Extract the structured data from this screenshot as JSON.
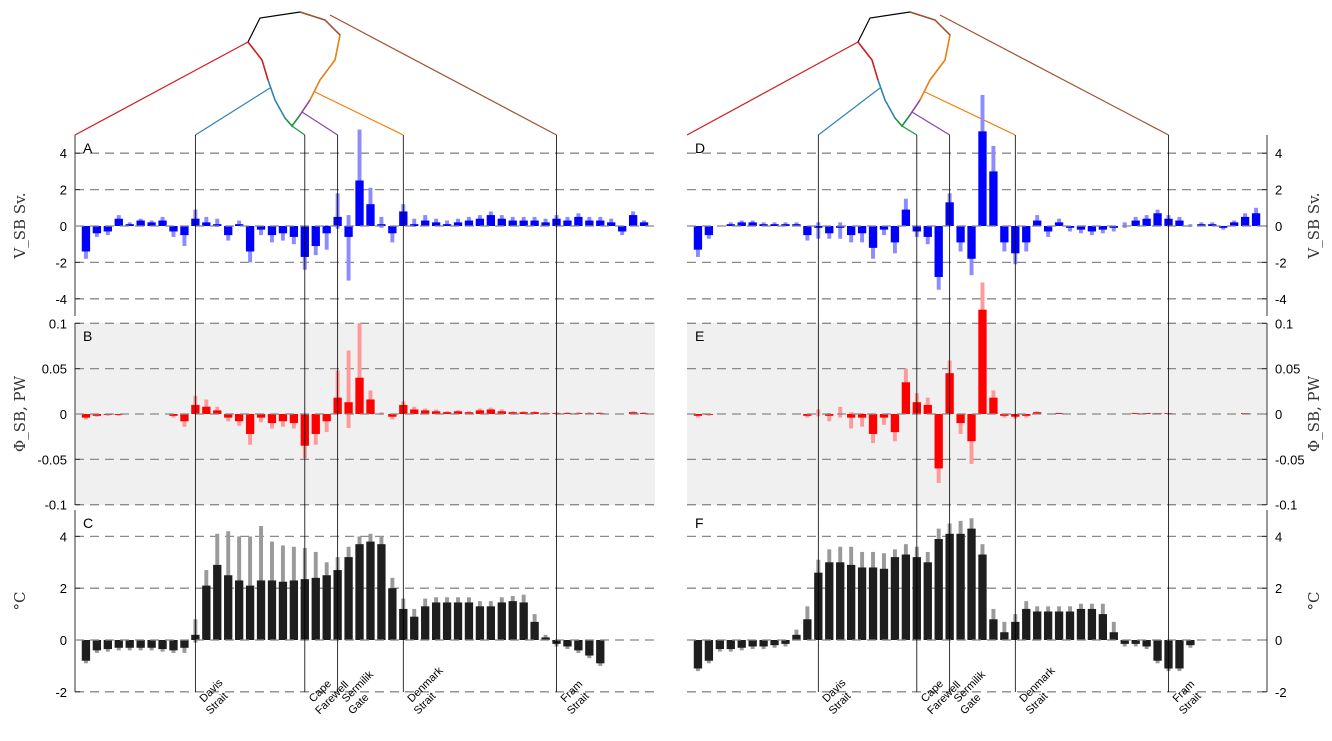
{
  "chart_data": {
    "type": "bar",
    "colors": {
      "transport": "#0000ff",
      "transport_err": "#8c8cff",
      "heat": "#ff0000",
      "heat_err": "#ff9a9a",
      "temp": "#1e1e1e",
      "temp_err": "#9a9a9a",
      "heat_bg": "#f0f0f0",
      "section_colors": [
        "#d7191c",
        "#2b83ba",
        "#1a9641",
        "#8e44ad",
        "#f07f09",
        "#a0522d"
      ]
    },
    "sections": [
      "Davis\nStrait",
      "Cape\nFarewell",
      "Sermilik\nGate",
      "Denmark\nStrait",
      "Fram\nStrait"
    ],
    "rows": {
      "transport": {
        "ylim": [
          -5,
          5
        ],
        "yticks": [
          "4",
          "2",
          "0",
          "-2",
          "-4"
        ],
        "ylabel": "V_SB Sv."
      },
      "heat": {
        "ylim": [
          -0.1,
          0.1
        ],
        "yticks": [
          "0.1",
          "0.05",
          "0",
          "-0.05",
          "-0.1"
        ],
        "ylabel": "Φ_SB, PW"
      },
      "temp": {
        "ylim": [
          -2,
          5
        ],
        "yticks": [
          "4",
          "2",
          "0",
          "-2"
        ],
        "ylabel": "°C"
      }
    },
    "panels": [
      {
        "labels": [
          "A",
          "B",
          "C"
        ],
        "n": 52,
        "section_index": [
          10,
          20,
          23,
          29,
          43
        ],
        "transport": [
          -1.4,
          -0.4,
          -0.3,
          0.4,
          0.1,
          0.3,
          0.2,
          0.3,
          -0.3,
          -0.5,
          0.4,
          0.2,
          0.1,
          -0.5,
          0.1,
          -1.4,
          -0.2,
          -0.5,
          -0.4,
          -0.6,
          -1.7,
          -1.1,
          -0.4,
          0.5,
          -0.6,
          2.5,
          1.2,
          0.1,
          -0.4,
          0.8,
          0.1,
          0.3,
          0.2,
          0.1,
          0.2,
          0.3,
          0.4,
          0.6,
          0.4,
          0.3,
          0.3,
          0.3,
          0.2,
          0.4,
          0.3,
          0.5,
          0.3,
          0.3,
          0.2,
          -0.3,
          0.6,
          0.2
        ],
        "transport_err": [
          0.4,
          0.2,
          0.2,
          0.2,
          0.1,
          0.1,
          0.1,
          0.2,
          0.3,
          0.6,
          0.5,
          0.3,
          0.3,
          0.3,
          0.2,
          0.6,
          0.3,
          0.4,
          0.4,
          0.4,
          0.7,
          0.5,
          0.9,
          1.3,
          2.4,
          2.8,
          0.9,
          0.4,
          0.5,
          0.4,
          0.3,
          0.3,
          0.2,
          0.2,
          0.2,
          0.2,
          0.2,
          0.2,
          0.2,
          0.2,
          0.2,
          0.2,
          0.2,
          0.2,
          0.2,
          0.2,
          0.2,
          0.2,
          0.2,
          0.2,
          0.2,
          0.1
        ],
        "heat": [
          -0.004,
          -0.002,
          -0.001,
          -0.001,
          0.0,
          0.0,
          0.0,
          0.0,
          -0.002,
          -0.008,
          0.01,
          0.008,
          0.004,
          -0.004,
          -0.008,
          -0.022,
          -0.004,
          -0.01,
          -0.008,
          -0.01,
          -0.035,
          -0.022,
          -0.008,
          0.018,
          0.013,
          0.04,
          0.016,
          0.0,
          -0.003,
          0.01,
          0.005,
          0.004,
          0.003,
          0.002,
          0.003,
          0.002,
          0.004,
          0.005,
          0.003,
          0.002,
          0.002,
          0.002,
          0.001,
          0.001,
          0.001,
          0.001,
          0.001,
          0.001,
          0.0,
          0.0,
          0.002,
          0.001
        ],
        "heat_err": [
          0.002,
          0.001,
          0.001,
          0.001,
          0.0,
          0.0,
          0.0,
          0.0,
          0.002,
          0.006,
          0.01,
          0.008,
          0.004,
          0.004,
          0.005,
          0.012,
          0.005,
          0.006,
          0.006,
          0.006,
          0.014,
          0.012,
          0.012,
          0.03,
          0.057,
          0.06,
          0.01,
          0.002,
          0.003,
          0.004,
          0.003,
          0.002,
          0.002,
          0.001,
          0.001,
          0.001,
          0.002,
          0.002,
          0.002,
          0.001,
          0.001,
          0.001,
          0.001,
          0.001,
          0.001,
          0.001,
          0.001,
          0.001,
          0.0,
          0.0,
          0.001,
          0.001
        ],
        "temp": [
          -0.8,
          -0.4,
          -0.35,
          -0.3,
          -0.3,
          -0.3,
          -0.3,
          -0.35,
          -0.4,
          -0.3,
          0.2,
          2.1,
          2.9,
          2.5,
          2.3,
          2.1,
          2.3,
          2.3,
          2.25,
          2.3,
          2.35,
          2.4,
          2.5,
          2.7,
          3.2,
          3.7,
          3.8,
          3.7,
          2.0,
          1.2,
          0.9,
          1.3,
          1.45,
          1.45,
          1.45,
          1.45,
          1.3,
          1.3,
          1.45,
          1.5,
          1.45,
          0.7,
          0.1,
          -0.15,
          -0.25,
          -0.4,
          -0.6,
          -0.9,
          0.0,
          0.0,
          0.0,
          0.0
        ],
        "temp_err": [
          0.1,
          0.1,
          0.1,
          0.1,
          0.1,
          0.1,
          0.1,
          0.1,
          0.1,
          0.2,
          0.6,
          0.6,
          1.2,
          1.7,
          1.7,
          1.9,
          2.1,
          1.5,
          1.4,
          1.3,
          1.2,
          1.0,
          0.5,
          0.5,
          0.4,
          0.3,
          0.3,
          0.3,
          0.4,
          0.4,
          0.3,
          0.3,
          0.2,
          0.2,
          0.2,
          0.2,
          0.2,
          0.2,
          0.2,
          0.2,
          0.3,
          0.3,
          0.1,
          0.1,
          0.1,
          0.1,
          0.1,
          0.1,
          0.0,
          0.0,
          0.0,
          0.0
        ]
      },
      {
        "labels": [
          "D",
          "E",
          "F"
        ],
        "n": 52,
        "section_index": [
          11,
          20,
          23,
          29,
          43
        ],
        "transport": [
          -1.3,
          -0.5,
          0.0,
          0.1,
          0.2,
          0.2,
          0.1,
          0.1,
          0.1,
          0.1,
          -0.5,
          -0.1,
          -0.4,
          -0.1,
          -0.5,
          -0.4,
          -1.2,
          -0.2,
          -0.9,
          0.9,
          -0.3,
          -0.6,
          -2.8,
          1.3,
          -0.9,
          -1.8,
          5.2,
          3.0,
          -0.9,
          -1.5,
          -0.9,
          0.3,
          -0.3,
          0.2,
          -0.1,
          -0.2,
          -0.3,
          -0.2,
          -0.1,
          0.0,
          0.3,
          0.4,
          0.7,
          0.4,
          0.3,
          0.0,
          0.1,
          0.1,
          -0.1,
          0.2,
          0.5,
          0.7
        ],
        "transport_err": [
          0.4,
          0.2,
          0.0,
          0.1,
          0.1,
          0.1,
          0.1,
          0.1,
          0.1,
          0.1,
          0.3,
          0.6,
          0.3,
          0.6,
          0.4,
          0.5,
          0.6,
          0.3,
          0.6,
          0.6,
          0.3,
          0.4,
          0.7,
          0.5,
          0.5,
          0.9,
          2.0,
          1.4,
          0.5,
          0.6,
          0.5,
          0.3,
          0.3,
          0.2,
          0.2,
          0.2,
          0.2,
          0.2,
          0.2,
          0.2,
          0.2,
          0.2,
          0.2,
          0.2,
          0.2,
          0.1,
          0.1,
          0.1,
          0.1,
          0.1,
          0.2,
          0.3
        ],
        "heat": [
          -0.002,
          -0.001,
          0.0,
          0.0,
          0.0,
          0.0,
          0.0,
          0.0,
          0.0,
          0.0,
          -0.002,
          0.0,
          -0.002,
          0.0,
          -0.004,
          -0.004,
          -0.022,
          -0.004,
          -0.02,
          0.035,
          0.013,
          0.01,
          -0.06,
          0.045,
          -0.01,
          -0.03,
          0.115,
          0.018,
          -0.002,
          -0.003,
          -0.002,
          0.002,
          0.0,
          0.001,
          0.0,
          0.0,
          0.0,
          0.0,
          0.0,
          0.0,
          0.001,
          0.001,
          0.001,
          0.001,
          0.0,
          0.0,
          0.0,
          0.0,
          0.0,
          0.0,
          0.001,
          0.0
        ],
        "heat_err": [
          0.002,
          0.001,
          0.0,
          0.0,
          0.0,
          0.0,
          0.0,
          0.0,
          0.0,
          0.0,
          0.002,
          0.005,
          0.006,
          0.008,
          0.012,
          0.01,
          0.01,
          0.008,
          0.01,
          0.015,
          0.01,
          0.008,
          0.016,
          0.014,
          0.012,
          0.025,
          0.03,
          0.008,
          0.002,
          0.002,
          0.002,
          0.001,
          0.0,
          0.0,
          0.0,
          0.0,
          0.0,
          0.0,
          0.0,
          0.0,
          0.0,
          0.0,
          0.0,
          0.0,
          0.0,
          0.0,
          0.0,
          0.0,
          0.0,
          0.0,
          0.0,
          0.0
        ],
        "temp": [
          -1.1,
          -0.8,
          -0.35,
          -0.35,
          -0.3,
          -0.25,
          -0.25,
          -0.2,
          -0.15,
          0.2,
          0.8,
          2.6,
          3.0,
          3.0,
          2.9,
          2.8,
          2.8,
          2.75,
          3.2,
          3.3,
          3.2,
          3.0,
          3.9,
          4.1,
          4.1,
          4.3,
          3.3,
          0.8,
          0.3,
          0.7,
          1.2,
          1.1,
          1.1,
          1.1,
          1.1,
          1.2,
          1.2,
          1.0,
          0.3,
          -0.15,
          -0.15,
          -0.25,
          -0.8,
          -1.1,
          -1.1,
          -0.2,
          0.0,
          0.0,
          0.0,
          0.0,
          0.0,
          0.0
        ],
        "temp_err": [
          0.1,
          0.1,
          0.1,
          0.1,
          0.1,
          0.1,
          0.1,
          0.1,
          0.1,
          0.2,
          0.5,
          0.5,
          0.5,
          0.6,
          0.7,
          0.6,
          0.6,
          0.6,
          0.3,
          0.4,
          0.4,
          0.4,
          0.4,
          0.4,
          0.5,
          0.4,
          0.4,
          0.4,
          0.4,
          0.3,
          0.3,
          0.2,
          0.2,
          0.2,
          0.2,
          0.2,
          0.2,
          0.4,
          0.4,
          0.1,
          0.1,
          0.1,
          0.1,
          0.1,
          0.1,
          0.1,
          0.0,
          0.0,
          0.0,
          0.0,
          0.0,
          0.0
        ]
      }
    ]
  }
}
